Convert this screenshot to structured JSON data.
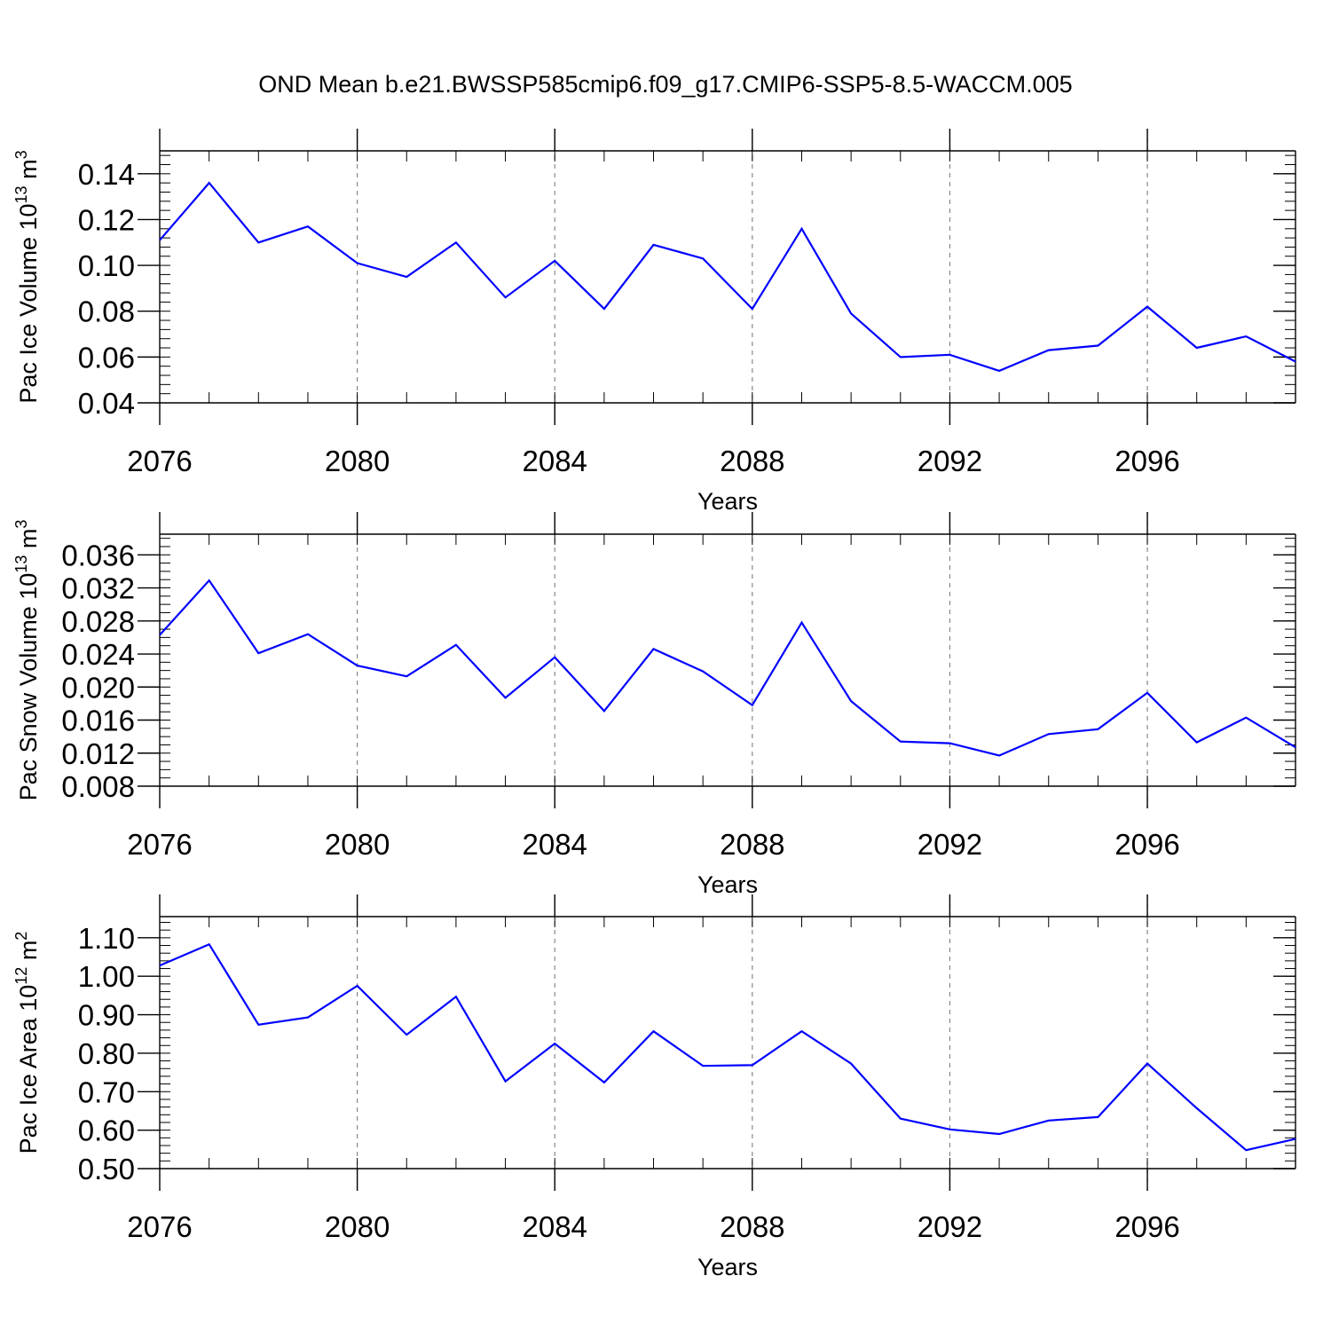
{
  "title": "OND Mean b.e21.BWSSP585cmip6.f09_g17.CMIP6-SSP5-8.5-WACCM.005",
  "line_color": "#0000ff",
  "chart_data": [
    {
      "type": "line",
      "xlabel": "Years",
      "ylabel": "Pac Ice Volume 10",
      "ylabel_exp": "13",
      "ylabel_unit": " m",
      "ylabel_unit_exp": "3",
      "xlim": [
        2076,
        2099
      ],
      "ylim": [
        0.04,
        0.15
      ],
      "x_ticks": [
        2076,
        2080,
        2084,
        2088,
        2092,
        2096
      ],
      "y_ticks": [
        "0.04",
        "0.06",
        "0.08",
        "0.10",
        "0.12",
        "0.14"
      ],
      "y_minor_step": 0.004,
      "grid": "vertical dashed",
      "series": [
        {
          "x": [
            2076,
            2077,
            2078,
            2079,
            2080,
            2081,
            2082,
            2083,
            2084,
            2085,
            2086,
            2087,
            2088,
            2089,
            2090,
            2091,
            2092,
            2093,
            2094,
            2095,
            2096,
            2097,
            2098,
            2099
          ],
          "values": [
            0.111,
            0.136,
            0.11,
            0.117,
            0.101,
            0.095,
            0.11,
            0.086,
            0.102,
            0.081,
            0.109,
            0.103,
            0.081,
            0.116,
            0.079,
            0.06,
            0.061,
            0.054,
            0.063,
            0.065,
            0.082,
            0.064,
            0.069,
            0.058
          ]
        }
      ]
    },
    {
      "type": "line",
      "xlabel": "Years",
      "ylabel": "Pac Snow Volume 10",
      "ylabel_exp": "13",
      "ylabel_unit": " m",
      "ylabel_unit_exp": "3",
      "xlim": [
        2076,
        2099
      ],
      "ylim": [
        0.008,
        0.0385
      ],
      "x_ticks": [
        2076,
        2080,
        2084,
        2088,
        2092,
        2096
      ],
      "y_ticks": [
        "0.008",
        "0.012",
        "0.016",
        "0.020",
        "0.024",
        "0.028",
        "0.032",
        "0.036"
      ],
      "y_minor_step": 0.001,
      "grid": "vertical dashed",
      "series": [
        {
          "x": [
            2076,
            2077,
            2078,
            2079,
            2080,
            2081,
            2082,
            2083,
            2084,
            2085,
            2086,
            2087,
            2088,
            2089,
            2090,
            2091,
            2092,
            2093,
            2094,
            2095,
            2096,
            2097,
            2098,
            2099
          ],
          "values": [
            0.0263,
            0.0329,
            0.0241,
            0.0264,
            0.0226,
            0.0213,
            0.0251,
            0.0187,
            0.0236,
            0.0171,
            0.0246,
            0.0219,
            0.0178,
            0.0278,
            0.0183,
            0.0134,
            0.0132,
            0.0117,
            0.0143,
            0.0149,
            0.0193,
            0.0133,
            0.0163,
            0.0127
          ]
        }
      ]
    },
    {
      "type": "line",
      "xlabel": "Years",
      "ylabel": "Pac Ice Area 10",
      "ylabel_exp": "12",
      "ylabel_unit": " m",
      "ylabel_unit_exp": "2",
      "xlim": [
        2076,
        2099
      ],
      "ylim": [
        0.5,
        1.155
      ],
      "x_ticks": [
        2076,
        2080,
        2084,
        2088,
        2092,
        2096
      ],
      "y_ticks": [
        "0.50",
        "0.60",
        "0.70",
        "0.80",
        "0.90",
        "1.00",
        "1.10"
      ],
      "y_minor_step": 0.02,
      "grid": "vertical dashed",
      "series": [
        {
          "x": [
            2076,
            2077,
            2078,
            2079,
            2080,
            2081,
            2082,
            2083,
            2084,
            2085,
            2086,
            2087,
            2088,
            2089,
            2090,
            2091,
            2092,
            2093,
            2094,
            2095,
            2096,
            2097,
            2098,
            2099
          ],
          "values": [
            1.028,
            1.083,
            0.874,
            0.893,
            0.975,
            0.848,
            0.947,
            0.727,
            0.825,
            0.724,
            0.857,
            0.767,
            0.769,
            0.857,
            0.773,
            0.63,
            0.602,
            0.59,
            0.625,
            0.634,
            0.773,
            0.657,
            0.548,
            0.577
          ]
        }
      ]
    }
  ]
}
